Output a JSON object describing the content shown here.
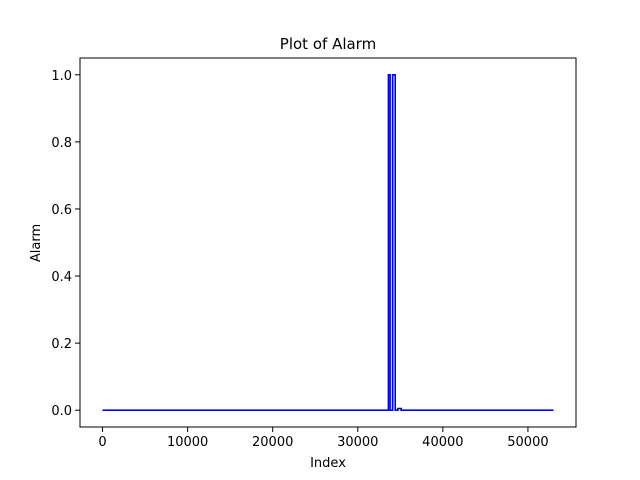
{
  "chart_data": {
    "type": "line",
    "title": "Plot of Alarm",
    "xlabel": "Index",
    "ylabel": "Alarm",
    "xlim": [
      -2650,
      55650
    ],
    "ylim": [
      -0.05,
      1.05
    ],
    "xticks": [
      0,
      10000,
      20000,
      30000,
      40000,
      50000
    ],
    "xtick_labels": [
      "0",
      "10000",
      "20000",
      "30000",
      "40000",
      "50000"
    ],
    "yticks": [
      0.0,
      0.2,
      0.4,
      0.6,
      0.8,
      1.0
    ],
    "ytick_labels": [
      "0.0",
      "0.2",
      "0.4",
      "0.6",
      "0.8",
      "1.0"
    ],
    "grid": false,
    "series": [
      {
        "color": "#0000ff",
        "x": [
          0,
          33600,
          33600,
          33800,
          33800,
          34100,
          34100,
          34400,
          34400,
          34700,
          34700,
          35100,
          35100,
          53000
        ],
        "values": [
          0,
          0,
          1,
          1,
          0,
          0,
          1,
          1,
          0,
          0,
          0.005,
          0.005,
          0,
          0
        ]
      }
    ]
  }
}
